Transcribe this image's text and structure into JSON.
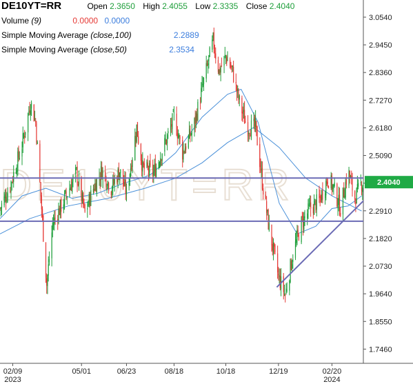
{
  "header": {
    "symbol": "DE10YT=RR",
    "open_label": "Open",
    "open_value": "2.3650",
    "high_label": "High",
    "high_value": "2.4055",
    "low_label": "Low",
    "low_value": "2.3335",
    "close_label": "Close",
    "close_value": "2.4040"
  },
  "indicators": [
    {
      "label": "Volume",
      "param": "(9)",
      "values": [
        "0.0000",
        "0.0000"
      ]
    },
    {
      "label": "Simple Moving Average",
      "param": "(close,100)",
      "values": [
        "2.2889"
      ]
    },
    {
      "label": "Simple Moving Average",
      "param": "(close,50)",
      "values": [
        "2.3534"
      ]
    }
  ],
  "watermark": "DE10YT=RR",
  "colors": {
    "up": "#1e9e3a",
    "down": "#e53935",
    "sma": "#4a90d9",
    "trendline": "#6b6bb5",
    "last_price_bg": "#1faa45"
  },
  "chart_data": {
    "type": "candlestick",
    "title": "DE10YT=RR",
    "ylim": [
      1.69,
      3.1
    ],
    "yticks": [
      "3.0540",
      "2.9450",
      "2.8360",
      "2.7270",
      "2.6180",
      "2.5090",
      "2.4000",
      "2.2910",
      "2.1820",
      "2.0730",
      "1.9640",
      "1.8550",
      "1.7460"
    ],
    "x_labels": [
      {
        "label": "02/09",
        "sub": "2023",
        "date": "2023-02-09"
      },
      {
        "label": "05/01",
        "sub": "",
        "date": "2023-05-01"
      },
      {
        "label": "06/23",
        "sub": "",
        "date": "2023-06-23"
      },
      {
        "label": "08/18",
        "sub": "",
        "date": "2023-08-18"
      },
      {
        "label": "10/18",
        "sub": "",
        "date": "2023-10-18"
      },
      {
        "label": "12/19",
        "sub": "",
        "date": "2023-12-19"
      },
      {
        "label": "02/20",
        "sub": "2024",
        "date": "2024-02-20"
      }
    ],
    "x_range": [
      "2023-01-25",
      "2024-03-28"
    ],
    "last_price": "2.4040",
    "close_path": [
      [
        "2023-01-25",
        2.3
      ],
      [
        "2023-02-05",
        2.38
      ],
      [
        "2023-02-20",
        2.55
      ],
      [
        "2023-03-02",
        2.72
      ],
      [
        "2023-03-08",
        2.64
      ],
      [
        "2023-03-15",
        2.3
      ],
      [
        "2023-03-21",
        2.0
      ],
      [
        "2023-03-28",
        2.24
      ],
      [
        "2023-04-10",
        2.33
      ],
      [
        "2023-04-25",
        2.44
      ],
      [
        "2023-05-05",
        2.28
      ],
      [
        "2023-05-15",
        2.38
      ],
      [
        "2023-05-25",
        2.45
      ],
      [
        "2023-06-05",
        2.38
      ],
      [
        "2023-06-15",
        2.45
      ],
      [
        "2023-06-23",
        2.36
      ],
      [
        "2023-07-05",
        2.62
      ],
      [
        "2023-07-12",
        2.46
      ],
      [
        "2023-07-25",
        2.44
      ],
      [
        "2023-08-10",
        2.58
      ],
      [
        "2023-08-18",
        2.66
      ],
      [
        "2023-08-28",
        2.52
      ],
      [
        "2023-09-10",
        2.62
      ],
      [
        "2023-09-22",
        2.8
      ],
      [
        "2023-10-03",
        2.96
      ],
      [
        "2023-10-10",
        2.84
      ],
      [
        "2023-10-18",
        2.9
      ],
      [
        "2023-10-26",
        2.84
      ],
      [
        "2023-11-02",
        2.73
      ],
      [
        "2023-11-12",
        2.62
      ],
      [
        "2023-11-22",
        2.62
      ],
      [
        "2023-12-01",
        2.38
      ],
      [
        "2023-12-08",
        2.22
      ],
      [
        "2023-12-19",
        2.03
      ],
      [
        "2023-12-27",
        1.96
      ],
      [
        "2024-01-05",
        2.12
      ],
      [
        "2024-01-15",
        2.24
      ],
      [
        "2024-01-25",
        2.3
      ],
      [
        "2024-02-05",
        2.33
      ],
      [
        "2024-02-15",
        2.42
      ],
      [
        "2024-02-22",
        2.38
      ],
      [
        "2024-03-01",
        2.3
      ],
      [
        "2024-03-10",
        2.45
      ],
      [
        "2024-03-18",
        2.34
      ],
      [
        "2024-03-26",
        2.4
      ]
    ],
    "sma_100": [
      [
        "2023-01-25",
        2.2
      ],
      [
        "2023-03-01",
        2.26
      ],
      [
        "2023-04-15",
        2.31
      ],
      [
        "2023-06-01",
        2.34
      ],
      [
        "2023-07-15",
        2.38
      ],
      [
        "2023-08-20",
        2.42
      ],
      [
        "2023-09-20",
        2.48
      ],
      [
        "2023-10-20",
        2.56
      ],
      [
        "2023-11-20",
        2.62
      ],
      [
        "2023-12-20",
        2.54
      ],
      [
        "2024-01-20",
        2.42
      ],
      [
        "2024-02-20",
        2.35
      ],
      [
        "2024-03-26",
        2.29
      ]
    ],
    "sma_50": [
      [
        "2023-01-25",
        2.26
      ],
      [
        "2023-02-20",
        2.35
      ],
      [
        "2023-03-20",
        2.38
      ],
      [
        "2023-04-20",
        2.34
      ],
      [
        "2023-05-20",
        2.36
      ],
      [
        "2023-06-20",
        2.4
      ],
      [
        "2023-07-20",
        2.43
      ],
      [
        "2023-08-20",
        2.52
      ],
      [
        "2023-09-20",
        2.66
      ],
      [
        "2023-10-20",
        2.75
      ],
      [
        "2023-11-05",
        2.77
      ],
      [
        "2023-11-25",
        2.64
      ],
      [
        "2023-12-20",
        2.32
      ],
      [
        "2024-01-10",
        2.2
      ],
      [
        "2024-02-01",
        2.23
      ],
      [
        "2024-02-20",
        2.3
      ],
      [
        "2024-03-10",
        2.31
      ],
      [
        "2024-03-26",
        2.35
      ]
    ],
    "trendlines": [
      {
        "from": [
          "2023-01-25",
          2.42
        ],
        "to": [
          "2024-03-28",
          2.42
        ]
      },
      {
        "from": [
          "2023-01-25",
          2.25
        ],
        "to": [
          "2024-03-28",
          2.25
        ]
      },
      {
        "from": [
          "2023-12-17",
          1.99
        ],
        "to": [
          "2024-03-28",
          2.33
        ]
      }
    ]
  }
}
